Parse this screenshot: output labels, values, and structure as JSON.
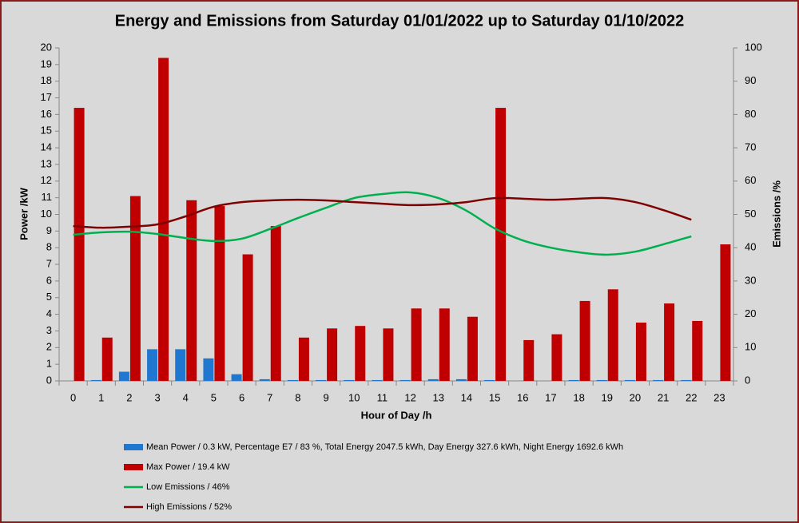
{
  "chart_data": {
    "type": "bar",
    "title": "Energy and Emissions from Saturday 01/01/2022 up to Saturday 01/10/2022",
    "x_label": "Hour of Day /h",
    "y_label": "Power /kW",
    "y2_label": "Emissions /%",
    "categories": [
      "0",
      "1",
      "2",
      "3",
      "4",
      "5",
      "6",
      "7",
      "8",
      "9",
      "10",
      "11",
      "12",
      "13",
      "14",
      "15",
      "16",
      "17",
      "18",
      "19",
      "20",
      "21",
      "22",
      "23"
    ],
    "series": [
      {
        "name": "Mean Power / 0.3 kW, Percentage E7 / 83 %, Total Energy 2047.5 kWh, Day Energy 327.6 kWh, Night Energy 1692.6 kWh",
        "type": "bar",
        "color": "#1f77d0",
        "values": [
          0,
          0.05,
          0.55,
          1.9,
          1.9,
          1.35,
          0.4,
          0.1,
          0.05,
          0.05,
          0.05,
          0.05,
          0.05,
          0.1,
          0.1,
          0.05,
          0,
          0,
          0.05,
          0.05,
          0.05,
          0.05,
          0.05,
          0
        ]
      },
      {
        "name": "Max Power / 19.4 kW",
        "type": "bar",
        "color": "#c00000",
        "values": [
          16.4,
          2.6,
          11.1,
          19.4,
          10.85,
          10.5,
          7.6,
          9.3,
          2.6,
          3.15,
          3.3,
          3.15,
          4.35,
          4.35,
          3.85,
          16.4,
          2.45,
          2.8,
          4.8,
          5.5,
          3.5,
          4.65,
          3.6,
          8.2
        ]
      },
      {
        "name": "Low Emissions / 46%",
        "type": "line",
        "axis": "y2",
        "color": "#00b050",
        "values": [
          43.9,
          44.6,
          44.8,
          44.1,
          42.9,
          42,
          42.7,
          45.6,
          48.9,
          52,
          54.9,
          56.1,
          56.6,
          54.9,
          51.1,
          45.8,
          42.2,
          40,
          38.6,
          37.9,
          38.8,
          41,
          43.4,
          null
        ]
      },
      {
        "name": "High Emissions / 52%",
        "type": "line",
        "axis": "y2",
        "color": "#7f0000",
        "values": [
          46.5,
          46,
          46.3,
          47,
          49.4,
          52.3,
          53.7,
          54.2,
          54.4,
          54.2,
          53.7,
          53.2,
          52.8,
          53,
          53.7,
          54.9,
          54.7,
          54.4,
          54.7,
          54.9,
          53.7,
          51.3,
          48.4,
          null
        ]
      }
    ],
    "ylim": [
      0,
      20
    ],
    "yticks": [
      0,
      1,
      2,
      3,
      4,
      5,
      6,
      7,
      8,
      9,
      10,
      11,
      12,
      13,
      14,
      15,
      16,
      17,
      18,
      19,
      20
    ],
    "y2lim": [
      0,
      100
    ],
    "y2ticks": [
      0,
      10,
      20,
      30,
      40,
      50,
      60,
      70,
      80,
      90,
      100
    ]
  }
}
